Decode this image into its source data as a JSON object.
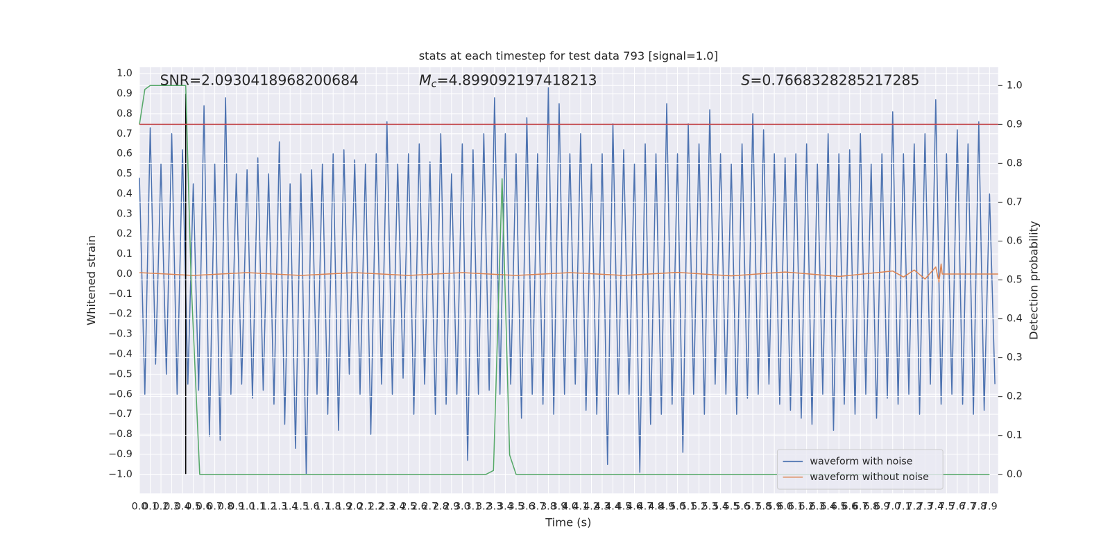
{
  "chart_data": {
    "type": "line",
    "title": "stats at each timestep for test data 793 [signal=1.0]",
    "xlabel": "Time (s)",
    "ylabel": "Whitened strain",
    "y2label": "Detection probability",
    "annotations": [
      {
        "text": "SNR=2.0930418968200684"
      },
      {
        "symbol": "M",
        "subscript": "c",
        "text": "=4.899092197418213"
      },
      {
        "symbol": "S",
        "text": "=0.7668328285217285"
      }
    ],
    "grid": true,
    "legend": "lower right",
    "xlim": [
      0,
      7.98
    ],
    "ylim": [
      -1.095,
      1.032
    ],
    "y2lim": [
      -0.049,
      1.047
    ],
    "xticks": [
      {
        "value": 0,
        "label": "0.0"
      },
      0.1,
      0.2,
      0.3,
      0.4,
      0.5,
      0.6,
      0.7,
      0.8,
      0.9,
      {
        "value": 1,
        "label": "1.0"
      },
      1.1,
      1.2,
      1.3,
      1.4,
      1.5,
      1.6,
      1.7,
      1.8,
      1.9,
      {
        "value": 2,
        "label": "2.0"
      },
      2.1,
      2.2,
      2.3,
      2.4,
      2.5,
      2.6,
      2.7,
      2.8,
      2.9,
      {
        "value": 3,
        "label": "3.0"
      },
      3.1,
      3.2,
      3.3,
      3.4,
      3.5,
      3.6,
      3.7,
      3.8,
      3.9,
      {
        "value": 4,
        "label": "4.0"
      },
      4.1,
      4.2,
      4.3,
      4.4,
      4.5,
      4.6,
      4.7,
      4.8,
      4.9,
      {
        "value": 5,
        "label": "5.0"
      },
      5.1,
      5.2,
      5.3,
      5.4,
      5.5,
      5.6,
      5.7,
      5.8,
      5.9,
      {
        "value": 6,
        "label": "6.0"
      },
      6.1,
      6.2,
      6.3,
      6.4,
      6.5,
      6.6,
      6.7,
      6.8,
      6.9,
      {
        "value": 7,
        "label": "7.0"
      },
      7.1,
      7.2,
      7.3,
      7.4,
      7.5,
      7.6,
      7.7,
      7.8,
      7.9
    ],
    "yticks": [
      {
        "value": -1,
        "label": "−1.0"
      },
      {
        "value": -0.9,
        "label": "−0.9"
      },
      {
        "value": -0.8,
        "label": "−0.8"
      },
      {
        "value": -0.7,
        "label": "−0.7"
      },
      {
        "value": -0.6,
        "label": "−0.6"
      },
      {
        "value": -0.5,
        "label": "−0.5"
      },
      {
        "value": -0.4,
        "label": "−0.4"
      },
      {
        "value": -0.3,
        "label": "−0.3"
      },
      {
        "value": -0.2,
        "label": "−0.2"
      },
      {
        "value": -0.1,
        "label": "−0.1"
      },
      {
        "value": 0,
        "label": "0.0"
      },
      0.1,
      0.2,
      0.3,
      0.4,
      0.5,
      0.6,
      0.7,
      0.8,
      0.9,
      {
        "value": 1,
        "label": "1.0"
      }
    ],
    "y2ticks": [
      {
        "value": 0,
        "label": "0.0"
      },
      0.1,
      0.2,
      0.3,
      0.4,
      0.5,
      0.6,
      0.7,
      0.8,
      0.9,
      {
        "value": 1,
        "label": "1.0"
      }
    ],
    "series": [
      {
        "name": "waveform with noise",
        "color": "#4c72b0",
        "x": [
          0,
          0.05,
          0.1,
          0.15,
          0.2,
          0.25,
          0.3,
          0.35,
          0.4,
          0.45,
          0.5,
          0.55,
          0.6,
          0.65,
          0.7,
          0.75,
          0.8,
          0.85,
          0.9,
          0.95,
          1,
          1.05,
          1.1,
          1.15,
          1.2,
          1.25,
          1.3,
          1.35,
          1.4,
          1.45,
          1.5,
          1.55,
          1.6,
          1.65,
          1.7,
          1.75,
          1.8,
          1.85,
          1.9,
          1.95,
          2,
          2.05,
          2.1,
          2.15,
          2.2,
          2.25,
          2.3,
          2.35,
          2.4,
          2.45,
          2.5,
          2.55,
          2.6,
          2.65,
          2.7,
          2.75,
          2.8,
          2.85,
          2.9,
          2.95,
          3,
          3.05,
          3.1,
          3.15,
          3.2,
          3.25,
          3.3,
          3.35,
          3.4,
          3.45,
          3.5,
          3.55,
          3.6,
          3.65,
          3.7,
          3.75,
          3.8,
          3.85,
          3.9,
          3.95,
          4,
          4.05,
          4.1,
          4.15,
          4.2,
          4.25,
          4.3,
          4.35,
          4.4,
          4.45,
          4.5,
          4.55,
          4.6,
          4.65,
          4.7,
          4.75,
          4.8,
          4.85,
          4.9,
          4.95,
          5,
          5.05,
          5.1,
          5.15,
          5.2,
          5.25,
          5.3,
          5.35,
          5.4,
          5.45,
          5.5,
          5.55,
          5.6,
          5.65,
          5.7,
          5.75,
          5.8,
          5.85,
          5.9,
          5.95,
          6,
          6.05,
          6.1,
          6.15,
          6.2,
          6.25,
          6.3,
          6.35,
          6.4,
          6.45,
          6.5,
          6.55,
          6.6,
          6.65,
          6.7,
          6.75,
          6.8,
          6.85,
          6.9,
          6.95,
          7,
          7.05,
          7.1,
          7.15,
          7.2,
          7.25,
          7.3,
          7.35,
          7.4,
          7.45,
          7.5,
          7.55,
          7.6,
          7.65,
          7.7,
          7.75,
          7.8,
          7.85,
          7.9,
          7.95
        ],
        "values": [
          0.48,
          -0.6,
          0.73,
          -0.45,
          0.55,
          -0.5,
          0.7,
          -0.6,
          0.62,
          -0.55,
          0.45,
          -0.58,
          0.84,
          -0.81,
          0.55,
          -0.83,
          0.88,
          -0.6,
          0.5,
          -0.55,
          0.52,
          -0.62,
          0.58,
          -0.58,
          0.5,
          -0.65,
          0.66,
          -0.75,
          0.45,
          -0.87,
          0.5,
          -1.0,
          0.52,
          -0.6,
          0.55,
          -0.7,
          0.6,
          -0.78,
          0.62,
          -0.5,
          0.57,
          -0.6,
          0.55,
          -0.8,
          0.6,
          -0.55,
          0.76,
          -0.6,
          0.55,
          -0.52,
          0.6,
          -0.7,
          0.65,
          -0.55,
          0.56,
          -0.7,
          0.7,
          -0.65,
          0.5,
          -0.6,
          0.65,
          -0.93,
          0.62,
          -0.6,
          0.7,
          -0.58,
          0.88,
          -0.6,
          0.7,
          -0.55,
          0.6,
          -0.72,
          0.78,
          -0.6,
          0.6,
          -0.65,
          0.93,
          -0.7,
          0.85,
          -0.6,
          0.6,
          -0.55,
          0.7,
          -0.68,
          0.55,
          -0.7,
          0.6,
          -0.95,
          0.75,
          -0.6,
          0.62,
          -0.6,
          0.55,
          -0.99,
          0.65,
          -0.75,
          0.6,
          -0.7,
          0.85,
          -0.65,
          0.6,
          -0.89,
          0.75,
          -0.6,
          0.65,
          -0.7,
          0.82,
          -0.55,
          0.6,
          -0.6,
          0.55,
          -0.7,
          0.65,
          -0.62,
          0.8,
          -0.6,
          0.72,
          -0.55,
          0.6,
          -0.65,
          0.58,
          -0.68,
          0.6,
          -0.72,
          0.65,
          -0.75,
          0.55,
          -0.6,
          0.7,
          -0.78,
          0.6,
          -0.65,
          0.62,
          -0.7,
          0.7,
          -0.6,
          0.55,
          -0.72,
          0.6,
          -0.62,
          0.81,
          -0.65,
          0.6,
          -0.6,
          0.65,
          -0.7,
          0.7,
          -0.55,
          0.87,
          -0.65,
          0.6,
          -0.6,
          0.72,
          -0.65,
          0.65,
          -0.7,
          0.76,
          -0.68,
          0.4,
          -0.55
        ]
      },
      {
        "name": "waveform without noise",
        "color": "#dd8452",
        "x": [
          0,
          0.5,
          1,
          1.5,
          2,
          2.5,
          3,
          3.5,
          4,
          4.5,
          5,
          5.5,
          6,
          6.5,
          7,
          7.1,
          7.2,
          7.3,
          7.4,
          7.43,
          7.45,
          7.46,
          7.98
        ],
        "values": [
          0.007,
          -0.007,
          0.007,
          -0.007,
          0.007,
          -0.007,
          0.007,
          -0.007,
          0.007,
          -0.007,
          0.008,
          -0.009,
          0.01,
          -0.012,
          0.015,
          -0.015,
          0.02,
          -0.025,
          0.035,
          -0.04,
          0.05,
          0,
          0
        ]
      },
      {
        "color": "#000000",
        "x": [
          0.43,
          0.43
        ],
        "values": [
          -1.0,
          0.9
        ]
      },
      {
        "color": "#55a868",
        "axis": "y2",
        "x": [
          0,
          0.05,
          0.1,
          0.43,
          0.48,
          0.56,
          3.22,
          3.29,
          3.37,
          3.44,
          3.5,
          7.9
        ],
        "values": [
          0.9,
          0.99,
          1.0,
          1.0,
          0.5,
          0.0,
          0.0,
          0.01,
          0.76,
          0.05,
          0.0,
          0.0
        ]
      },
      {
        "color": "#c44e52",
        "axis": "y2",
        "x": [
          0,
          7.98
        ],
        "values": [
          0.9,
          0.9
        ]
      }
    ]
  }
}
